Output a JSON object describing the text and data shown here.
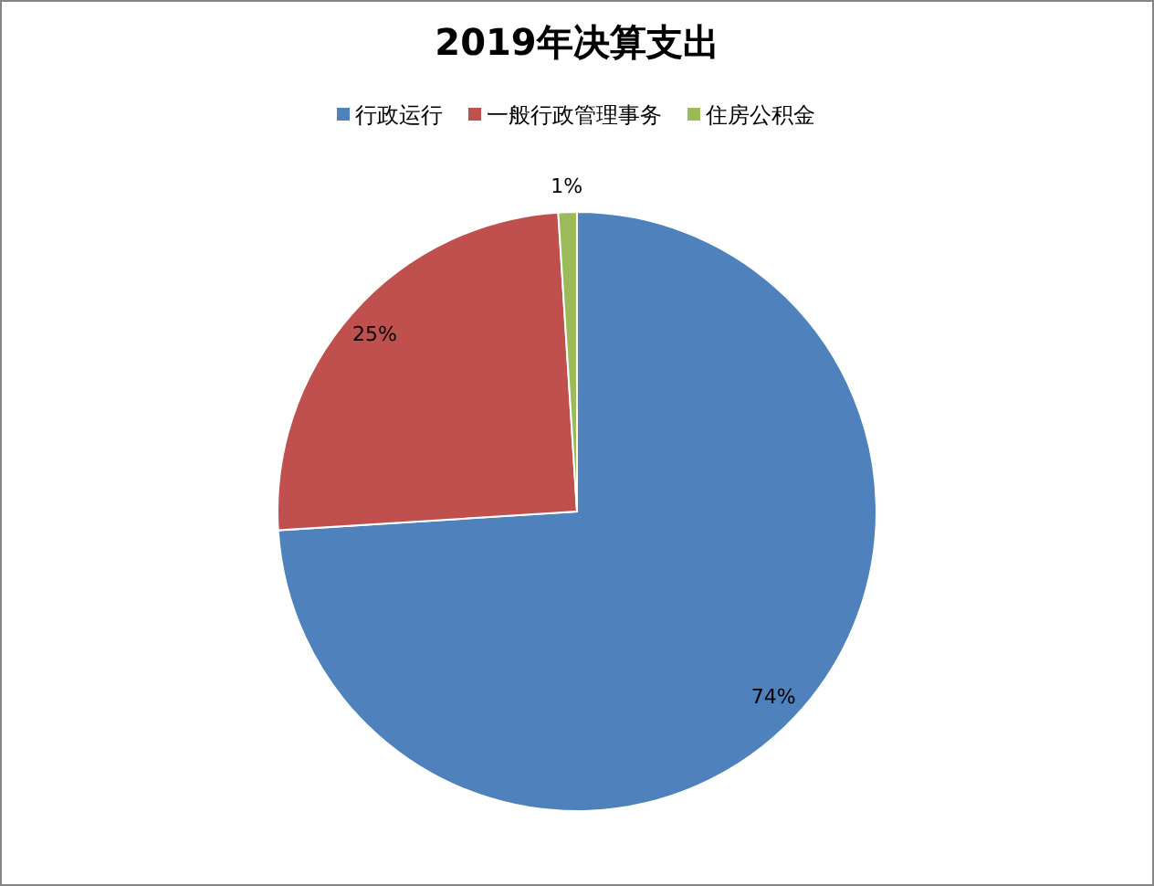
{
  "chart_data": {
    "type": "pie",
    "title": "2019年决算支出",
    "categories": [
      "行政运行",
      "一般行政管理事务",
      "住房公积金"
    ],
    "values": [
      74,
      25,
      1
    ],
    "colors": [
      "#4f81bd",
      "#c0504d",
      "#9bbb59"
    ],
    "value_labels": [
      "74%",
      "25%",
      "1%"
    ],
    "legend": "top"
  }
}
